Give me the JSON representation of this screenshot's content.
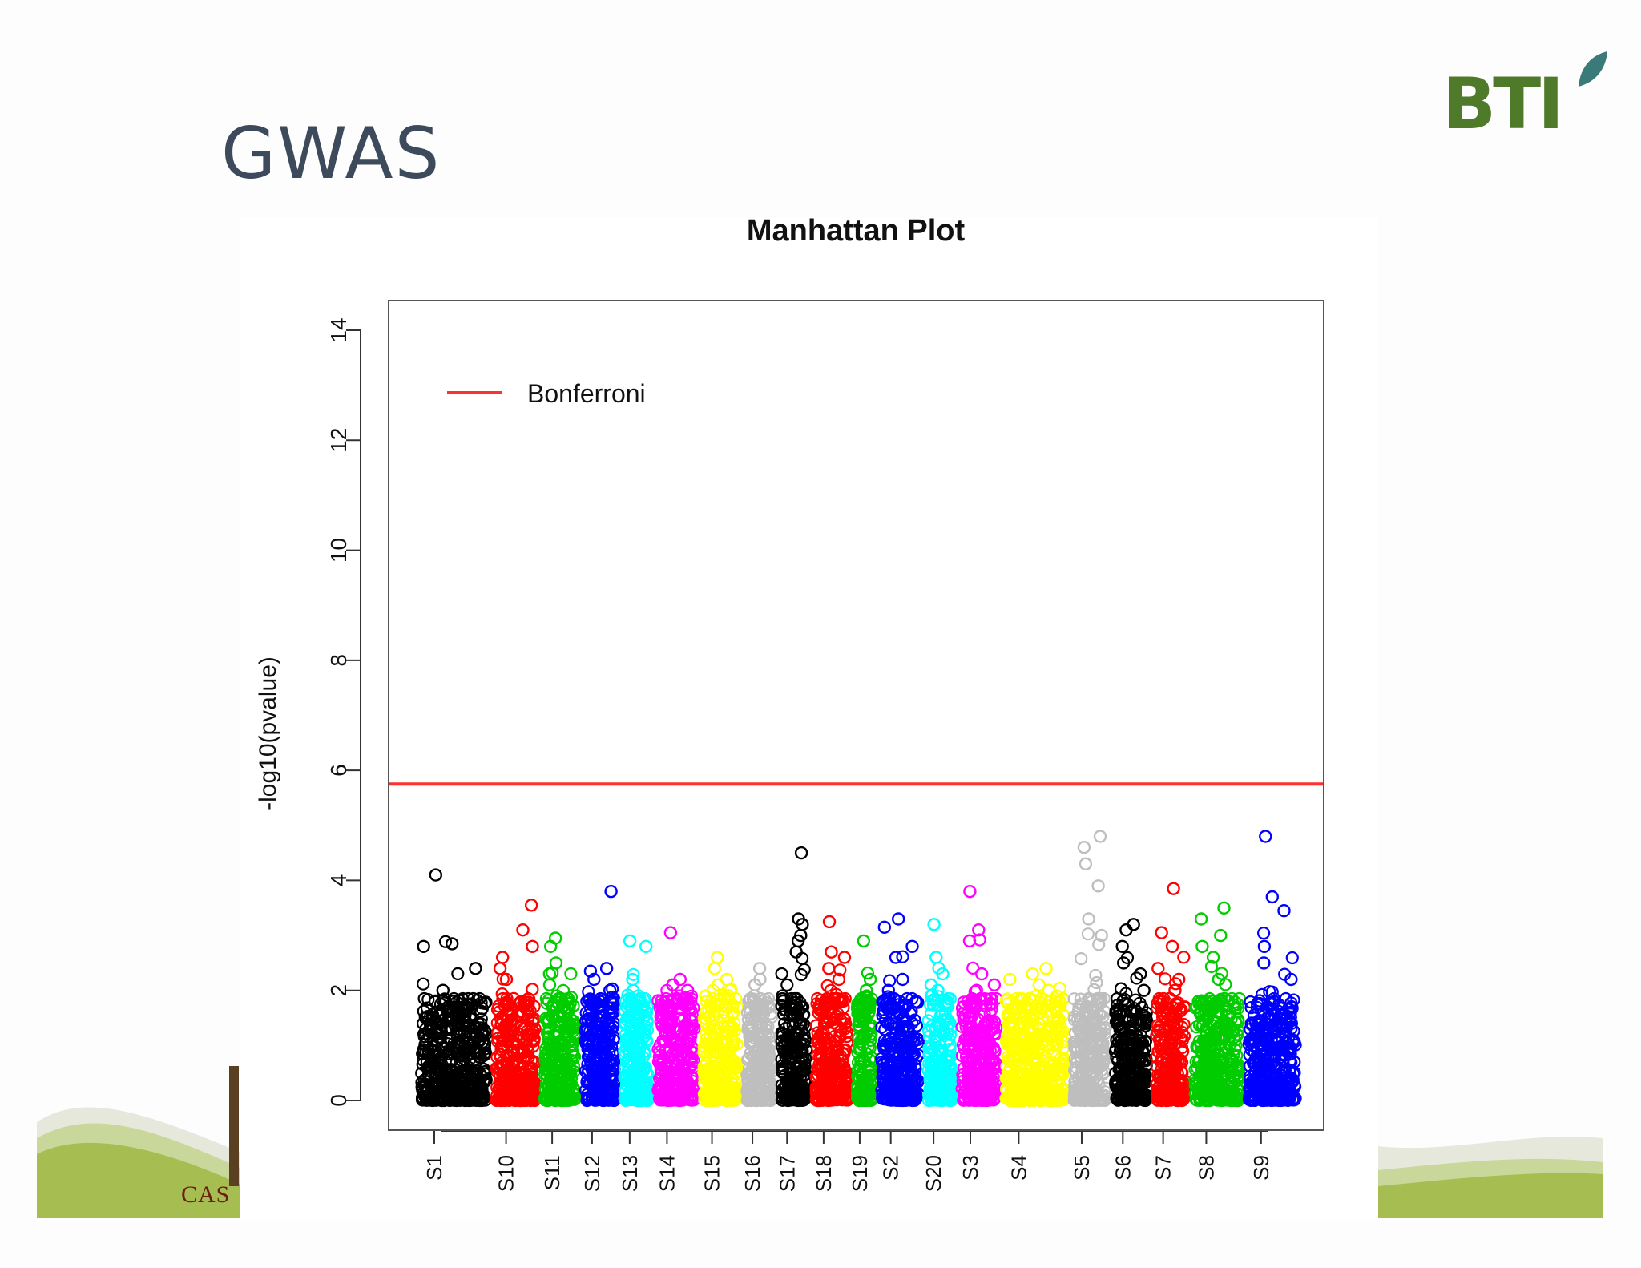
{
  "slide": {
    "title": "GWAS",
    "logo": "BTI",
    "footer_text": "CAS"
  },
  "colors": {
    "title": "#3d4a5c",
    "logo_green": "#4f7a2a",
    "bonferroni": "#ff3030",
    "footer_green": "#a6bd52"
  },
  "chart_data": {
    "type": "scatter",
    "title": "Manhattan Plot",
    "xlabel": "",
    "ylabel": "-log10(pvalue)",
    "ylim": [
      0,
      14
    ],
    "yticks": [
      0,
      2,
      4,
      6,
      8,
      10,
      12,
      14
    ],
    "grid": false,
    "legend": {
      "position": "top-left",
      "entries": [
        {
          "name": "Bonferroni",
          "color": "#ff3030"
        }
      ]
    },
    "threshold": {
      "name": "Bonferroni",
      "y": 5.75
    },
    "chromosomes": [
      {
        "label": "S1",
        "start": 0.03,
        "end": 0.11,
        "color": "#000000",
        "top": [
          4.1,
          2.85,
          2.8,
          2.4,
          2.0,
          1.6
        ]
      },
      {
        "label": "S10",
        "start": 0.11,
        "end": 0.162,
        "color": "#ff0000",
        "top": [
          3.55,
          3.1,
          2.8,
          2.6,
          2.4,
          2.2
        ]
      },
      {
        "label": "S11",
        "start": 0.162,
        "end": 0.205,
        "color": "#00cc00",
        "top": [
          2.95,
          2.8,
          2.5,
          2.3,
          2.1,
          1.9
        ]
      },
      {
        "label": "S12",
        "start": 0.205,
        "end": 0.247,
        "color": "#0000ff",
        "top": [
          3.8,
          2.4,
          2.35,
          2.2,
          2.0,
          1.8
        ]
      },
      {
        "label": "S13",
        "start": 0.247,
        "end": 0.283,
        "color": "#00ffff",
        "top": [
          2.9,
          2.8,
          2.2,
          2.0,
          1.9,
          1.8
        ]
      },
      {
        "label": "S14",
        "start": 0.283,
        "end": 0.332,
        "color": "#ff00ff",
        "top": [
          3.05,
          2.2,
          2.1,
          2.0,
          1.9,
          1.8
        ]
      },
      {
        "label": "S15",
        "start": 0.332,
        "end": 0.378,
        "color": "#ffff00",
        "top": [
          2.6,
          2.4,
          2.2,
          2.1,
          2.0,
          1.9
        ]
      },
      {
        "label": "S16",
        "start": 0.378,
        "end": 0.415,
        "color": "#bebebe",
        "top": [
          2.4,
          2.2,
          2.1,
          1.9,
          1.8,
          1.7
        ]
      },
      {
        "label": "S17",
        "start": 0.415,
        "end": 0.452,
        "color": "#000000",
        "top": [
          4.5,
          3.3,
          3.2,
          3.0,
          2.9,
          2.7
        ]
      },
      {
        "label": "S18",
        "start": 0.452,
        "end": 0.496,
        "color": "#ff0000",
        "top": [
          3.25,
          2.7,
          2.6,
          2.4,
          2.2,
          2.0
        ]
      },
      {
        "label": "S19",
        "start": 0.496,
        "end": 0.522,
        "color": "#00cc00",
        "top": [
          2.9,
          2.2,
          2.0,
          1.9,
          1.8,
          1.7
        ]
      },
      {
        "label": "S2",
        "start": 0.522,
        "end": 0.572,
        "color": "#0000ff",
        "top": [
          3.3,
          3.15,
          2.8,
          2.6,
          2.2,
          2.0
        ]
      },
      {
        "label": "S20",
        "start": 0.572,
        "end": 0.608,
        "color": "#00ffff",
        "top": [
          3.2,
          2.6,
          2.3,
          2.1,
          2.0,
          1.9
        ]
      },
      {
        "label": "S3",
        "start": 0.608,
        "end": 0.655,
        "color": "#ff00ff",
        "top": [
          3.8,
          3.1,
          2.9,
          2.3,
          2.1,
          2.0
        ]
      },
      {
        "label": "S4",
        "start": 0.655,
        "end": 0.728,
        "color": "#ffff00",
        "top": [
          2.4,
          2.3,
          2.2,
          2.1,
          2.0,
          1.9
        ]
      },
      {
        "label": "S5",
        "start": 0.728,
        "end": 0.772,
        "color": "#bebebe",
        "top": [
          4.8,
          4.6,
          4.3,
          3.9,
          3.3,
          3.0
        ]
      },
      {
        "label": "S6",
        "start": 0.772,
        "end": 0.816,
        "color": "#000000",
        "top": [
          3.2,
          3.1,
          2.8,
          2.5,
          2.3,
          2.0
        ]
      },
      {
        "label": "S7",
        "start": 0.816,
        "end": 0.857,
        "color": "#ff0000",
        "top": [
          3.85,
          3.05,
          2.8,
          2.4,
          2.2,
          2.0
        ]
      },
      {
        "label": "S8",
        "start": 0.857,
        "end": 0.915,
        "color": "#00cc00",
        "top": [
          3.5,
          3.3,
          3.0,
          2.8,
          2.6,
          2.2
        ]
      },
      {
        "label": "S9",
        "start": 0.915,
        "end": 0.975,
        "color": "#0000ff",
        "top": [
          4.8,
          3.7,
          3.45,
          2.8,
          2.5,
          2.2
        ]
      }
    ]
  }
}
